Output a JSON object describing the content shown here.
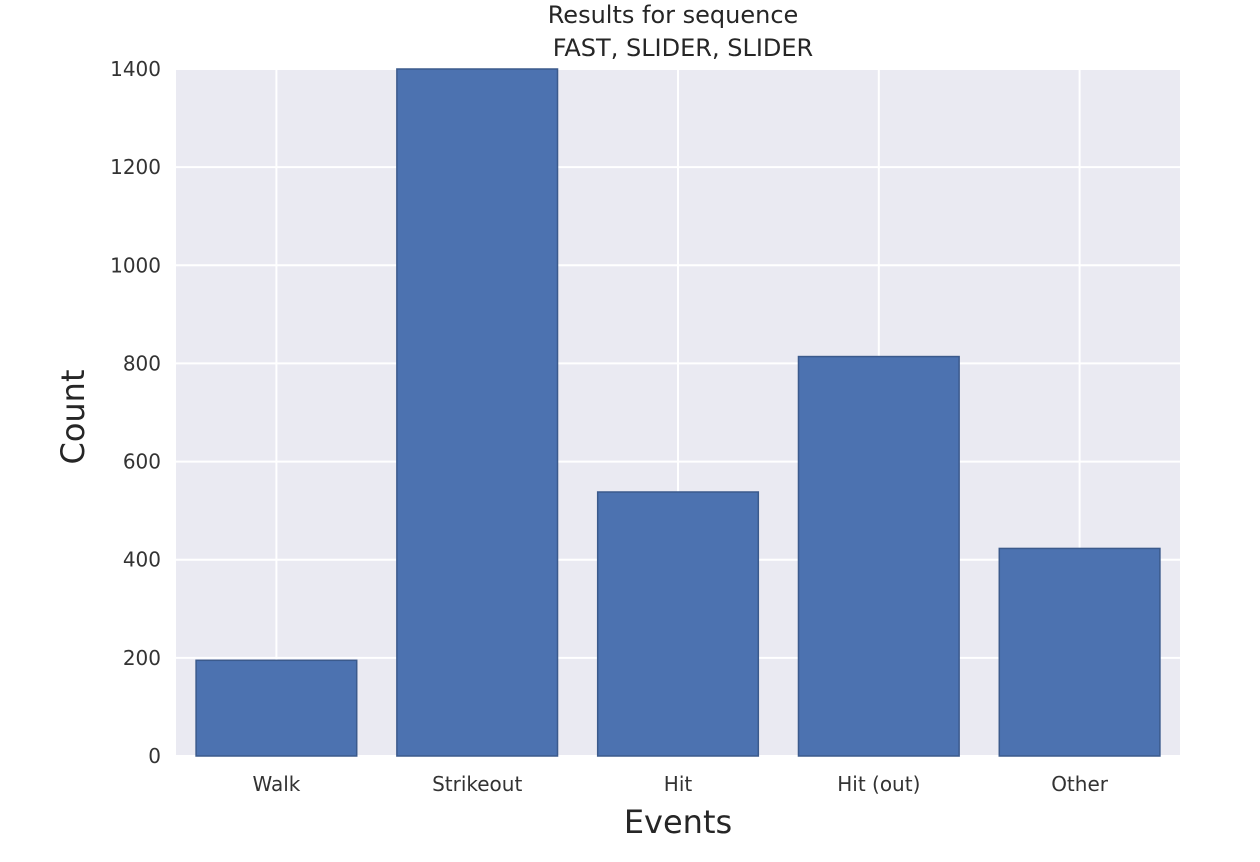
{
  "chart_data": {
    "type": "bar",
    "title": "Results for sequence",
    "subtitle": "FAST, SLIDER, SLIDER",
    "xlabel": "Events",
    "ylabel": "Count",
    "categories": [
      "Walk",
      "Strikeout",
      "Hit",
      "Hit (out)",
      "Other"
    ],
    "values": [
      195,
      1400,
      538,
      814,
      423
    ],
    "ylim": [
      0,
      1400
    ],
    "yticks": [
      0,
      200,
      400,
      600,
      800,
      1000,
      1200,
      1400
    ],
    "grid": true,
    "colors": {
      "bar": "#4c72b0",
      "bar_edge": "#3b5a8c",
      "plot_background": "#eaeaf2",
      "grid": "#ffffff"
    }
  }
}
